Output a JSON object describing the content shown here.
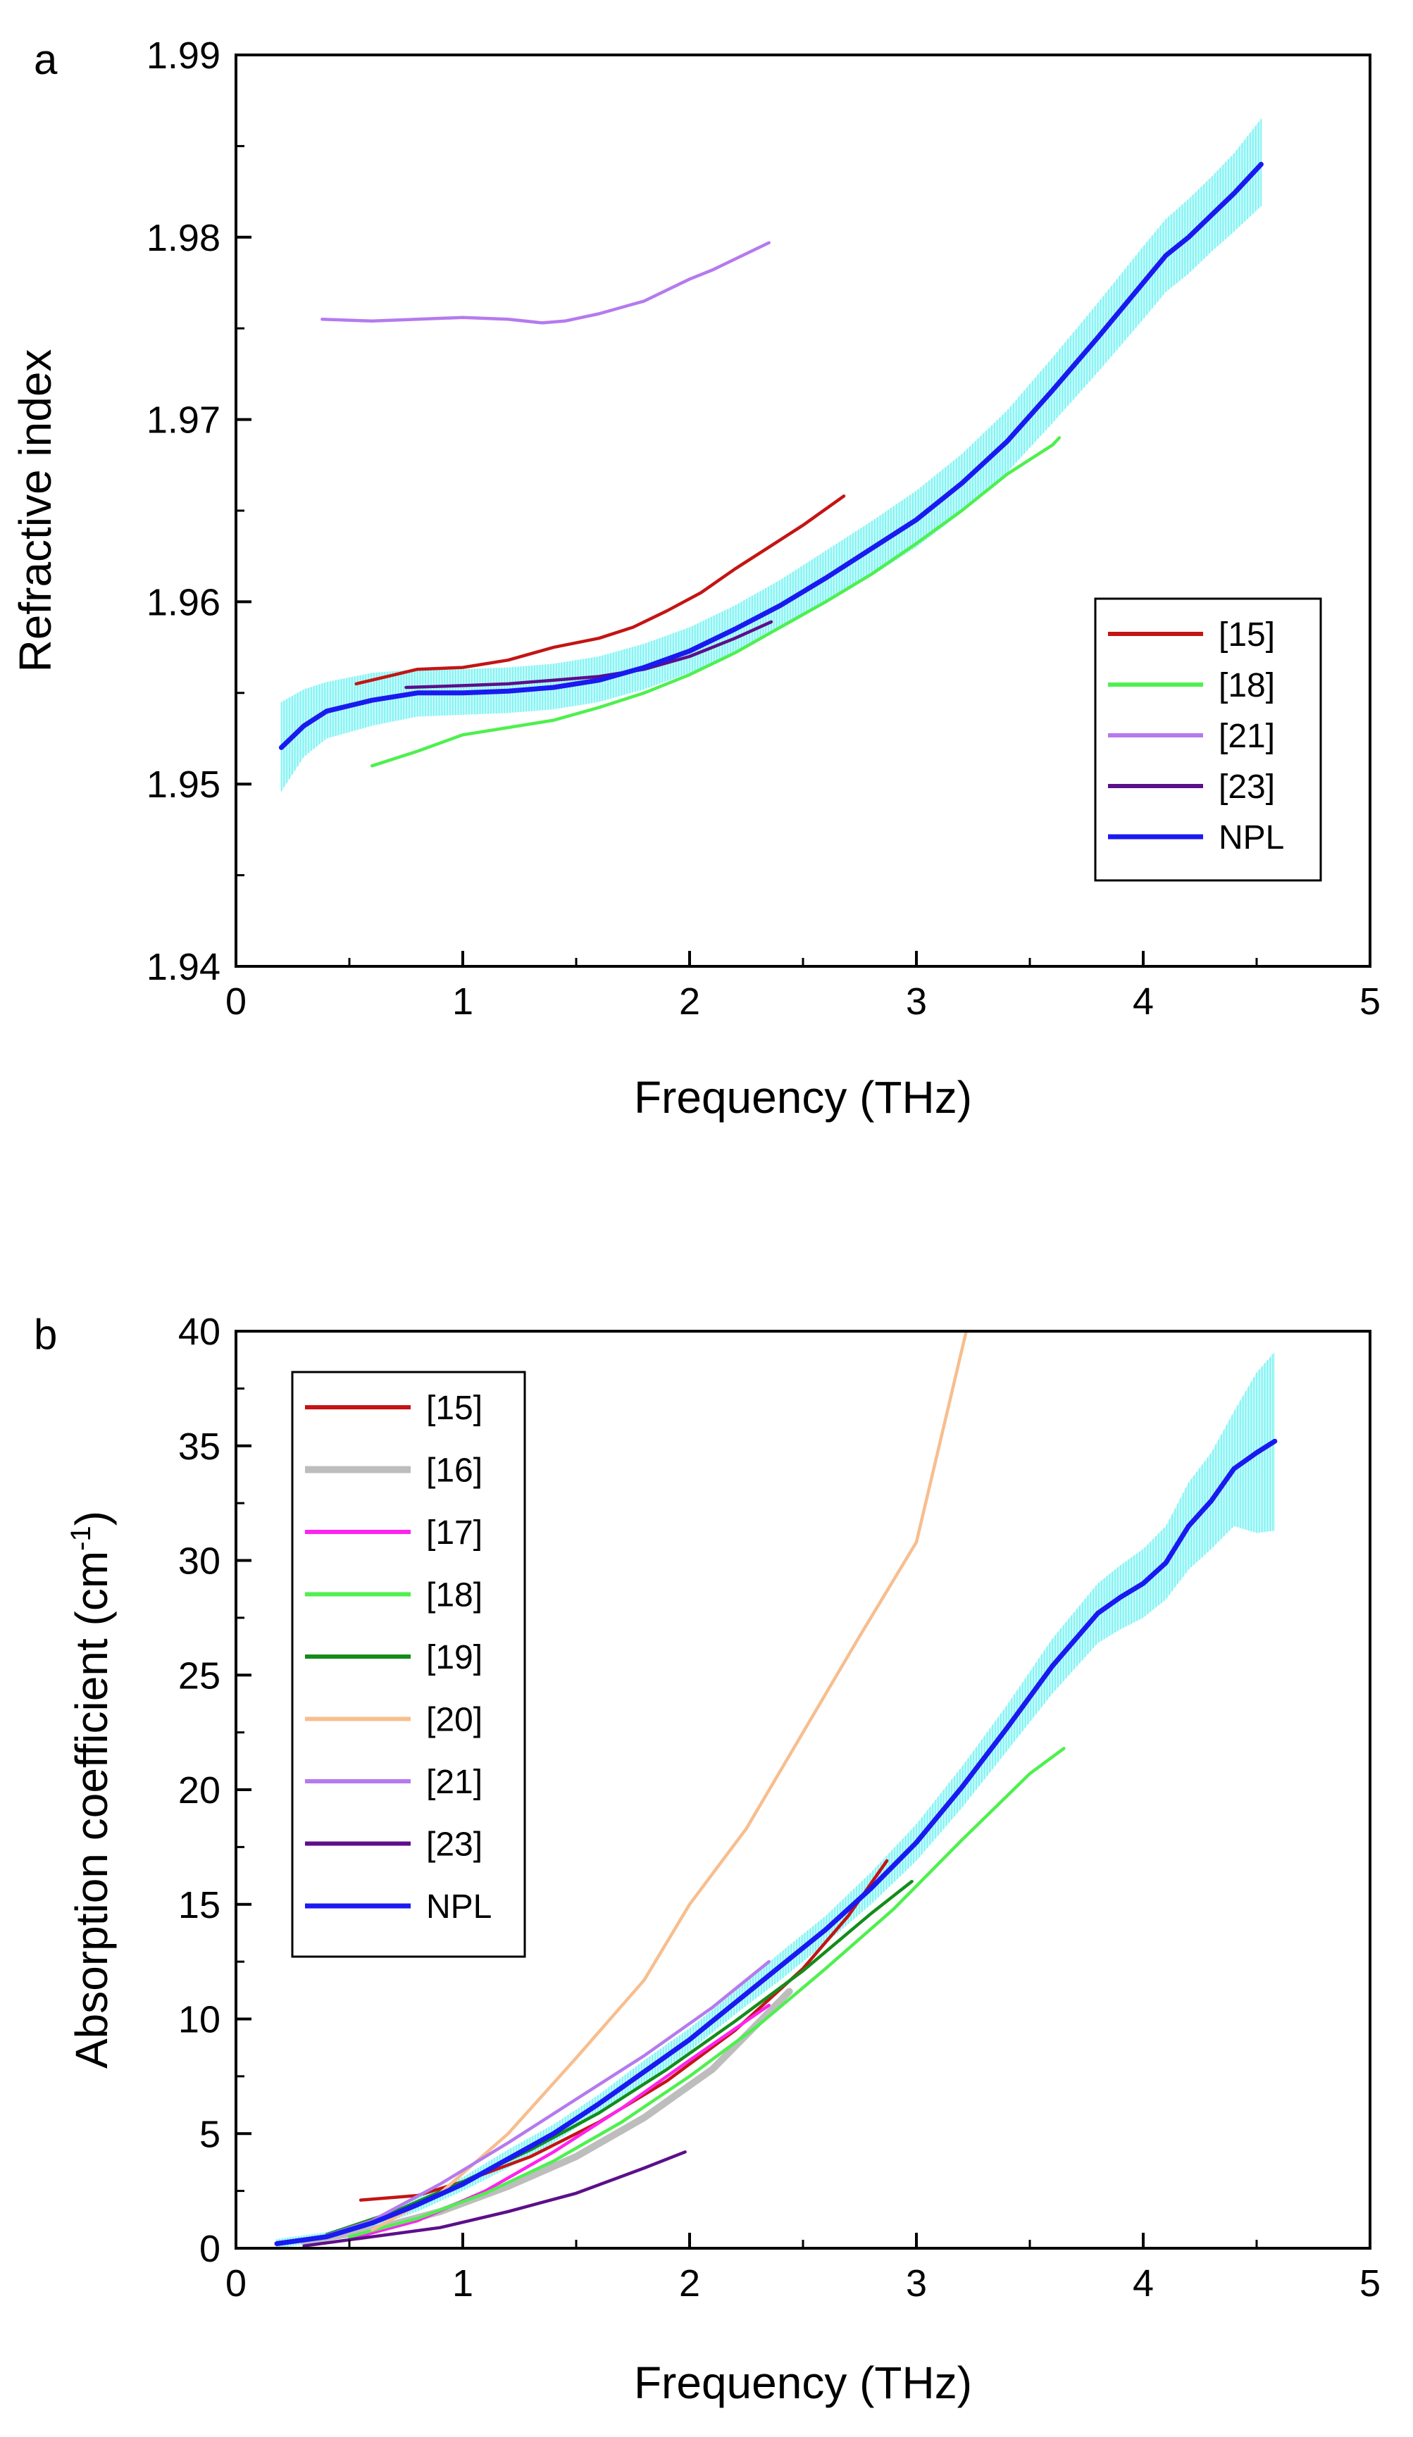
{
  "chart_data": [
    {
      "type": "line",
      "panel_label": "a",
      "xlabel": "Frequency (THz)",
      "ylabel": "Refractive index",
      "xlim": [
        0,
        5
      ],
      "ylim": [
        1.94,
        1.99
      ],
      "xticks": [
        "0",
        "1",
        "2",
        "3",
        "4",
        "5"
      ],
      "yticks": [
        "1.94",
        "1.95",
        "1.96",
        "1.97",
        "1.98",
        "1.99"
      ],
      "legend_position": "lower-right",
      "grid": false,
      "series": [
        {
          "name": "[15]",
          "color": "#c41414",
          "x": [
            0.53,
            0.7,
            0.8,
            1.0,
            1.2,
            1.4,
            1.6,
            1.75,
            1.9,
            2.05,
            2.2,
            2.35,
            2.5,
            2.68
          ],
          "y": [
            1.9555,
            1.956,
            1.9563,
            1.9564,
            1.9568,
            1.9575,
            1.958,
            1.9586,
            1.9595,
            1.9605,
            1.9618,
            1.963,
            1.9642,
            1.9658
          ]
        },
        {
          "name": "[18]",
          "color": "#4ef04e",
          "x": [
            0.6,
            0.8,
            1.0,
            1.2,
            1.4,
            1.6,
            1.8,
            2.0,
            2.2,
            2.4,
            2.6,
            2.8,
            3.0,
            3.2,
            3.4,
            3.6,
            3.63
          ],
          "y": [
            1.951,
            1.9518,
            1.9527,
            1.9531,
            1.9535,
            1.9542,
            1.955,
            1.956,
            1.9572,
            1.9586,
            1.96,
            1.9615,
            1.9632,
            1.965,
            1.967,
            1.9686,
            1.969
          ]
        },
        {
          "name": "[21]",
          "color": "#b57aee",
          "x": [
            0.38,
            0.6,
            0.8,
            1.0,
            1.2,
            1.35,
            1.45,
            1.6,
            1.8,
            2.0,
            2.1,
            2.2,
            2.35
          ],
          "y": [
            1.9755,
            1.9754,
            1.9755,
            1.9756,
            1.9755,
            1.9753,
            1.9754,
            1.9758,
            1.9765,
            1.9777,
            1.9782,
            1.9788,
            1.9797
          ]
        },
        {
          "name": "[23]",
          "color": "#5c0f8a",
          "x": [
            0.75,
            1.0,
            1.2,
            1.4,
            1.6,
            1.8,
            2.0,
            2.2,
            2.36
          ],
          "y": [
            1.9553,
            1.9554,
            1.9555,
            1.9557,
            1.9559,
            1.9563,
            1.957,
            1.958,
            1.9589
          ]
        },
        {
          "name": "NPL",
          "color": "#1a1af0",
          "x": [
            0.2,
            0.3,
            0.4,
            0.6,
            0.8,
            1.0,
            1.2,
            1.4,
            1.6,
            1.8,
            2.0,
            2.2,
            2.4,
            2.6,
            2.8,
            3.0,
            3.2,
            3.4,
            3.6,
            3.8,
            4.0,
            4.1,
            4.2,
            4.3,
            4.4,
            4.52
          ],
          "y": [
            1.952,
            1.9532,
            1.954,
            1.9546,
            1.955,
            1.955,
            1.9551,
            1.9553,
            1.9557,
            1.9564,
            1.9573,
            1.9585,
            1.9598,
            1.9613,
            1.9629,
            1.9645,
            1.9665,
            1.9688,
            1.9716,
            1.9745,
            1.9775,
            1.979,
            1.98,
            1.9812,
            1.9824,
            1.984
          ]
        },
        {
          "name": "",
          "role": "NPL uncertainty band",
          "color": "#5ef0f0",
          "x": [
            0.2,
            0.3,
            0.4,
            0.6,
            0.8,
            1.0,
            1.2,
            1.4,
            1.6,
            1.8,
            2.0,
            2.2,
            2.4,
            2.6,
            2.8,
            3.0,
            3.2,
            3.4,
            3.6,
            3.8,
            4.0,
            4.1,
            4.2,
            4.3,
            4.4,
            4.52
          ],
          "y_lower": [
            1.9496,
            1.9515,
            1.9525,
            1.9532,
            1.9537,
            1.9538,
            1.9539,
            1.9541,
            1.9545,
            1.9552,
            1.9561,
            1.9572,
            1.9585,
            1.9599,
            1.9614,
            1.963,
            1.9649,
            1.9671,
            1.9698,
            1.9726,
            1.9755,
            1.977,
            1.978,
            1.9792,
            1.9803,
            1.9817
          ],
          "y_upper": [
            1.9545,
            1.9552,
            1.9556,
            1.9561,
            1.9563,
            1.9563,
            1.9564,
            1.9566,
            1.957,
            1.9577,
            1.9586,
            1.9598,
            1.9612,
            1.9628,
            1.9644,
            1.9661,
            1.9681,
            1.9705,
            1.9734,
            1.9764,
            1.9795,
            1.981,
            1.9821,
            1.9833,
            1.9846,
            1.9865
          ]
        }
      ]
    },
    {
      "type": "line",
      "panel_label": "b",
      "xlabel": "Frequency (THz)",
      "ylabel": "Absorption coefficient (cm",
      "ylabel_superscript": "-1",
      "ylabel_suffix": ")",
      "xlim": [
        0,
        5
      ],
      "ylim": [
        0,
        40
      ],
      "xticks": [
        "0",
        "1",
        "2",
        "3",
        "4",
        "5"
      ],
      "yticks": [
        "0",
        "5",
        "10",
        "15",
        "20",
        "25",
        "30",
        "35",
        "40"
      ],
      "legend_position": "top-left",
      "grid": false,
      "series": [
        {
          "name": "[15]",
          "color": "#c41414",
          "x": [
            0.55,
            0.8,
            1.0,
            1.3,
            1.6,
            1.9,
            2.2,
            2.5,
            2.7,
            2.87
          ],
          "y": [
            2.1,
            2.3,
            2.9,
            4.0,
            5.5,
            7.3,
            9.5,
            12.2,
            14.5,
            16.9
          ]
        },
        {
          "name": "[16]",
          "color": "#bdbdbd",
          "x": [
            0.3,
            0.6,
            0.9,
            1.2,
            1.5,
            1.8,
            2.1,
            2.44
          ],
          "y": [
            0.3,
            0.8,
            1.6,
            2.7,
            4.0,
            5.7,
            7.8,
            11.2
          ]
        },
        {
          "name": "[17]",
          "color": "#ff22ee",
          "x": [
            0.5,
            0.8,
            1.1,
            1.4,
            1.7,
            2.0,
            2.35
          ],
          "y": [
            0.4,
            1.2,
            2.5,
            4.2,
            6.1,
            8.2,
            10.6
          ]
        },
        {
          "name": "[18]",
          "color": "#4ef04e",
          "x": [
            0.5,
            0.8,
            1.1,
            1.4,
            1.7,
            2.0,
            2.3,
            2.6,
            2.9,
            3.2,
            3.5,
            3.65
          ],
          "y": [
            0.5,
            1.3,
            2.4,
            3.8,
            5.5,
            7.5,
            9.7,
            12.2,
            14.8,
            17.8,
            20.7,
            21.8
          ]
        },
        {
          "name": "[19]",
          "color": "#138c1b",
          "x": [
            0.4,
            0.7,
            1.0,
            1.3,
            1.6,
            1.9,
            2.2,
            2.5,
            2.8,
            2.98
          ],
          "y": [
            0.6,
            1.6,
            2.9,
            4.3,
            5.9,
            7.8,
            9.9,
            12.1,
            14.6,
            16.0
          ]
        },
        {
          "name": "[20]",
          "color": "#f7be8e",
          "x": [
            0.6,
            0.9,
            1.2,
            1.5,
            1.8,
            2.0,
            2.25,
            2.5,
            2.75,
            3.0,
            3.22
          ],
          "y": [
            0.8,
            2.4,
            5.0,
            8.3,
            11.7,
            15.0,
            18.3,
            22.5,
            26.7,
            30.8,
            40.0
          ]
        },
        {
          "name": "[21]",
          "color": "#b57aee",
          "x": [
            0.35,
            0.6,
            0.9,
            1.2,
            1.5,
            1.8,
            2.1,
            2.35
          ],
          "y": [
            0.4,
            1.2,
            2.8,
            4.6,
            6.5,
            8.4,
            10.5,
            12.5
          ]
        },
        {
          "name": "[23]",
          "color": "#5c0f8a",
          "x": [
            0.3,
            0.6,
            0.9,
            1.2,
            1.5,
            1.8,
            1.98
          ],
          "y": [
            0.1,
            0.5,
            0.9,
            1.6,
            2.4,
            3.5,
            4.2
          ]
        },
        {
          "name": "NPL",
          "color": "#1a1af0",
          "x": [
            0.18,
            0.4,
            0.6,
            0.8,
            1.0,
            1.2,
            1.4,
            1.6,
            1.8,
            2.0,
            2.2,
            2.4,
            2.6,
            2.8,
            3.0,
            3.2,
            3.4,
            3.6,
            3.8,
            3.9,
            4.0,
            4.1,
            4.2,
            4.3,
            4.4,
            4.5,
            4.58
          ],
          "y": [
            0.2,
            0.5,
            1.1,
            1.9,
            2.8,
            3.9,
            5.0,
            6.3,
            7.7,
            9.1,
            10.7,
            12.3,
            13.9,
            15.7,
            17.7,
            20.1,
            22.7,
            25.4,
            27.7,
            28.4,
            29.0,
            29.9,
            31.5,
            32.6,
            34.0,
            34.7,
            35.2
          ]
        },
        {
          "name": "",
          "role": "NPL uncertainty band",
          "color": "#5ef0f0",
          "x": [
            0.18,
            0.4,
            0.6,
            0.8,
            1.0,
            1.2,
            1.4,
            1.6,
            1.8,
            2.0,
            2.2,
            2.4,
            2.6,
            2.8,
            3.0,
            3.2,
            3.4,
            3.6,
            3.8,
            3.9,
            4.0,
            4.1,
            4.2,
            4.3,
            4.4,
            4.5,
            4.58
          ],
          "y_lower": [
            0.0,
            0.3,
            0.9,
            1.6,
            2.5,
            3.5,
            4.6,
            5.9,
            7.2,
            8.6,
            10.2,
            11.7,
            13.3,
            15.0,
            16.9,
            19.2,
            21.7,
            24.2,
            26.4,
            27.0,
            27.5,
            28.3,
            29.6,
            30.5,
            31.5,
            31.2,
            31.3
          ],
          "y_upper": [
            0.4,
            0.7,
            1.3,
            2.2,
            3.1,
            4.3,
            5.4,
            6.7,
            8.2,
            9.6,
            11.2,
            12.9,
            14.5,
            16.4,
            18.5,
            21.0,
            23.7,
            26.6,
            29.0,
            29.8,
            30.5,
            31.5,
            33.4,
            34.7,
            36.5,
            38.2,
            39.1
          ]
        }
      ]
    }
  ]
}
